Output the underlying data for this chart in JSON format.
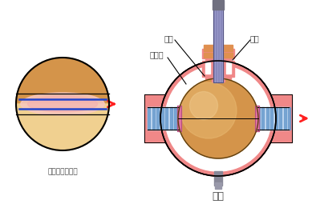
{
  "bg_color": "#ffffff",
  "title": "球阀",
  "subtitle_left": "球体俯视剖面图",
  "label_qiuti": "球体",
  "label_mifengzuo": "密封座",
  "label_faguan": "阀杆",
  "valve_body_color": "#f08888",
  "pipe_stripe_color": "#7ab0e0",
  "pipe_stripe_light": "#d0e8f8",
  "ball_color": "#d4944a",
  "ball_light": "#e8c080",
  "stem_color": "#8888bb",
  "stem_top_orange": "#e09050",
  "stem_hatch_color": "#606070",
  "seal_pink": "#e080b0",
  "arrow_color": "#ff2020",
  "text_color": "#444444",
  "line_color": "#000000",
  "fig_width": 3.89,
  "fig_height": 2.6,
  "dpi": 100
}
